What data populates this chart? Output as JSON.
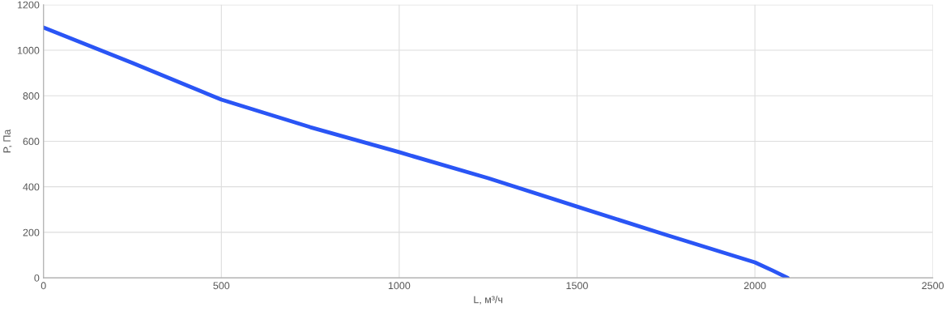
{
  "chart_data": {
    "type": "line",
    "xlabel": "L, м³/ч",
    "ylabel": "P, Па",
    "xlim": [
      0,
      2500
    ],
    "ylim": [
      0,
      1200
    ],
    "xticks": [
      0,
      500,
      1000,
      1500,
      2000,
      2500
    ],
    "yticks": [
      0,
      200,
      400,
      600,
      800,
      1000,
      1200
    ],
    "grid": true,
    "marker": "none",
    "line_style": "solid",
    "series": [
      {
        "color": "#2a55f5",
        "x": [
          0,
          250,
          500,
          750,
          1000,
          1250,
          1500,
          1750,
          2000,
          2050,
          2092
        ],
        "values": [
          1100,
          944,
          783,
          662,
          552,
          438,
          313,
          189,
          68,
          32,
          0
        ]
      }
    ]
  }
}
